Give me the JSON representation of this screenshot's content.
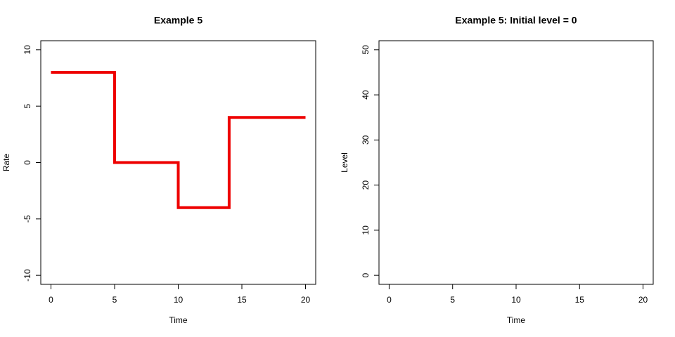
{
  "chart_data": [
    {
      "type": "line",
      "title": "Example 5",
      "xlabel": "Time",
      "ylabel": "Rate",
      "xlim": [
        -0.8,
        20.8
      ],
      "ylim": [
        -10.8,
        10.8
      ],
      "xticks": [
        0,
        5,
        10,
        15,
        20
      ],
      "yticks": [
        -10,
        -5,
        0,
        5,
        10
      ],
      "series": [
        {
          "x": [
            0,
            5,
            5,
            10,
            10,
            14,
            14,
            20
          ],
          "values": [
            8,
            8,
            0,
            0,
            -4,
            -4,
            4,
            4
          ],
          "color": "#ee0000"
        }
      ]
    },
    {
      "type": "line",
      "title": "Example 5: Initial level = 0",
      "xlabel": "Time",
      "ylabel": "Level",
      "xlim": [
        -0.8,
        20.8
      ],
      "ylim": [
        -2,
        52
      ],
      "xticks": [
        0,
        5,
        10,
        15,
        20
      ],
      "yticks": [
        0,
        10,
        20,
        30,
        40,
        50
      ],
      "series": []
    }
  ]
}
